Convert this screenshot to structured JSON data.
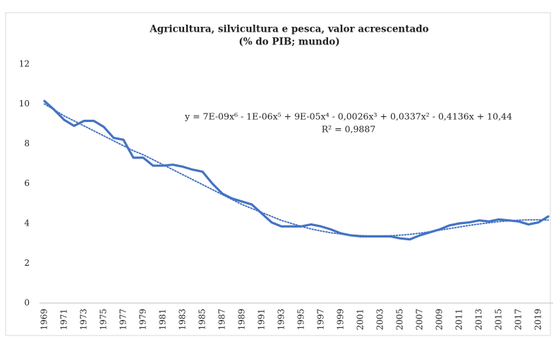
{
  "chart_data": {
    "type": "line",
    "title": "Agricultura, silvicultura e pesca, valor acrescentado",
    "subtitle": "(% do PIB; mundo)",
    "annotations": [
      "y = 7E-09x⁶ - 1E-06x⁵ + 9E-05x⁴ - 0,0026x³ + 0,0337x² - 0,4136x + 10,44",
      "R² = 0,9887"
    ],
    "categories": [
      "1969",
      null,
      "1971",
      null,
      "1973",
      null,
      "1975",
      null,
      "1977",
      null,
      "1979",
      null,
      "1981",
      null,
      "1983",
      null,
      "1985",
      null,
      "1987",
      null,
      "1989",
      null,
      "1991",
      null,
      "1993",
      null,
      "1995",
      null,
      "1997",
      null,
      "1999",
      null,
      "2001",
      null,
      "2003",
      null,
      "2005",
      null,
      "2007",
      null,
      "2009",
      null,
      "2011",
      null,
      "2013",
      null,
      "2015",
      null,
      "2017",
      null,
      "2019",
      null
    ],
    "values": [
      10.15,
      9.7,
      9.2,
      8.9,
      9.15,
      9.15,
      8.85,
      8.3,
      8.2,
      7.3,
      7.3,
      6.9,
      6.9,
      6.95,
      6.85,
      6.7,
      6.6,
      6.0,
      5.5,
      5.25,
      5.1,
      4.95,
      4.5,
      4.05,
      3.85,
      3.85,
      3.85,
      3.95,
      3.85,
      3.7,
      3.5,
      3.4,
      3.35,
      3.35,
      3.35,
      3.35,
      3.25,
      3.2,
      3.4,
      3.55,
      3.7,
      3.9,
      4.0,
      4.05,
      4.15,
      4.1,
      4.2,
      4.15,
      4.1,
      3.95,
      4.05,
      4.35
    ],
    "color": "#4472c4",
    "trendline": {
      "values": [
        10.0,
        9.7,
        9.4,
        9.15,
        8.9,
        8.65,
        8.4,
        8.15,
        7.9,
        7.65,
        7.45,
        7.2,
        6.95,
        6.7,
        6.45,
        6.2,
        5.95,
        5.7,
        5.45,
        5.2,
        4.95,
        4.75,
        4.55,
        4.35,
        4.15,
        4.0,
        3.85,
        3.72,
        3.62,
        3.53,
        3.47,
        3.42,
        3.39,
        3.37,
        3.37,
        3.38,
        3.41,
        3.45,
        3.51,
        3.58,
        3.66,
        3.74,
        3.82,
        3.9,
        3.97,
        4.03,
        4.09,
        4.13,
        4.16,
        4.18,
        4.18,
        4.17
      ],
      "color": "#4472c4"
    },
    "ylim": [
      0,
      12
    ],
    "yticks": [
      0,
      2,
      4,
      6,
      8,
      10,
      12
    ],
    "grid": false
  }
}
